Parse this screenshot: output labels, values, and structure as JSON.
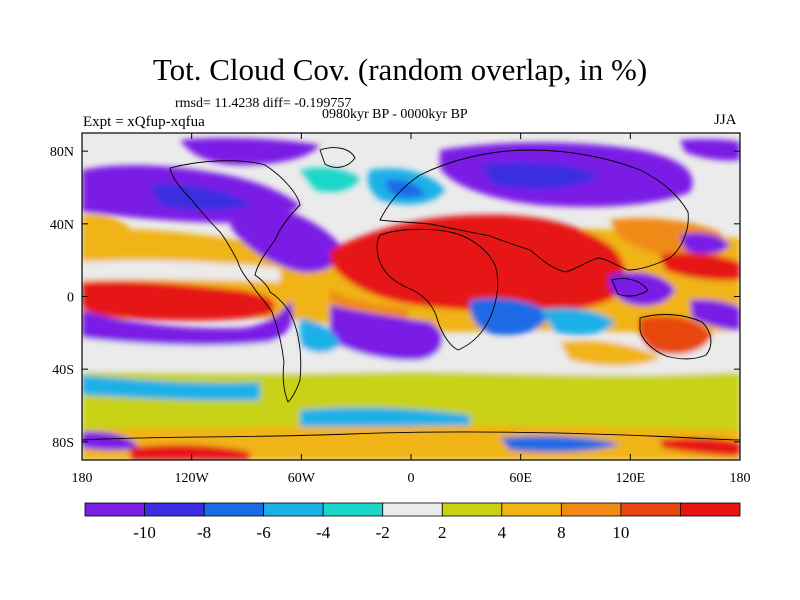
{
  "title": "Tot. Cloud Cov. (random overlap, in %)",
  "stats": "rmsd= 11.4238  diff= -0.199757",
  "period": "0980kyr BP - 0000kyr BP",
  "expt": "Expt = xQfup-xqfua",
  "season": "JJA",
  "chart_data": {
    "type": "heatmap",
    "xlim": [
      -180,
      180
    ],
    "ylim": [
      -90,
      90
    ],
    "x_ticks": [
      {
        "label": "180",
        "value": -180
      },
      {
        "label": "120W",
        "value": -120
      },
      {
        "label": "60W",
        "value": -60
      },
      {
        "label": "0",
        "value": 0
      },
      {
        "label": "60E",
        "value": 60
      },
      {
        "label": "120E",
        "value": 120
      },
      {
        "label": "180",
        "value": 180
      }
    ],
    "y_ticks": [
      {
        "label": "80N",
        "value": 80
      },
      {
        "label": "40N",
        "value": 40
      },
      {
        "label": "0",
        "value": 0
      },
      {
        "label": "40S",
        "value": -40
      },
      {
        "label": "80S",
        "value": -80
      }
    ],
    "colorbar": {
      "levels": [
        "-10",
        "-8",
        "-6",
        "-4",
        "-2",
        "2",
        "4",
        "8",
        "10"
      ],
      "colors": [
        "#7a1fe6",
        "#3a2ee0",
        "#1a6be6",
        "#1ab0e8",
        "#1ad6c8",
        "#ebebeb",
        "#c8d214",
        "#f0b414",
        "#f08a14",
        "#e8460e",
        "#e61414"
      ]
    }
  }
}
